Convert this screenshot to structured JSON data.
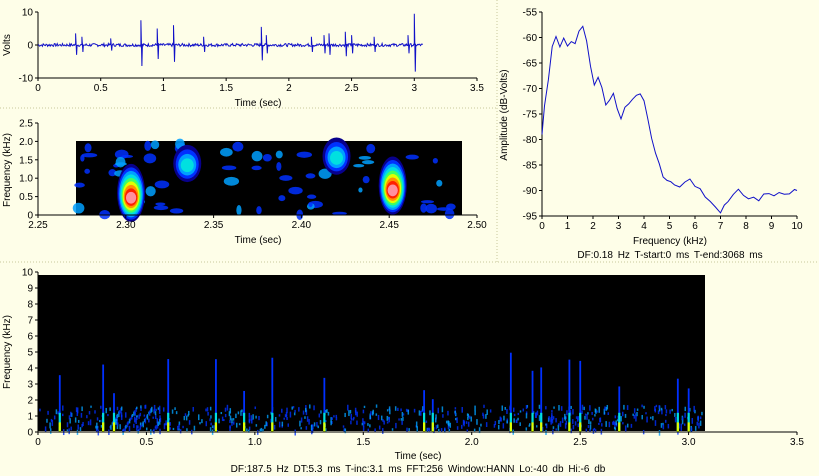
{
  "chart_data": [
    {
      "type": "line",
      "panel": "waveform",
      "xlabel": "Time (sec)",
      "ylabel": "Volts",
      "xlim": [
        0,
        3.5
      ],
      "ylim": [
        -10,
        10
      ],
      "xticks": [
        "0",
        "0.5",
        "1",
        "1.5",
        "2",
        "2.5",
        "3",
        "3.5"
      ],
      "yticks": [
        "10",
        "0",
        "-10"
      ],
      "duration": 3.068,
      "spikes": [
        {
          "t": 0.3,
          "amp": 3.5
        },
        {
          "t": 0.35,
          "amp": 2.5
        },
        {
          "t": 0.58,
          "amp": 2.0
        },
        {
          "t": 0.82,
          "amp": 7.5
        },
        {
          "t": 0.95,
          "amp": 5.0
        },
        {
          "t": 1.08,
          "amp": 6.0
        },
        {
          "t": 1.32,
          "amp": 2.5
        },
        {
          "t": 1.78,
          "amp": 5.5
        },
        {
          "t": 1.82,
          "amp": 3.0
        },
        {
          "t": 2.18,
          "amp": 2.5
        },
        {
          "t": 2.28,
          "amp": 3.0
        },
        {
          "t": 2.32,
          "amp": 3.5
        },
        {
          "t": 2.45,
          "amp": 4.0
        },
        {
          "t": 2.5,
          "amp": 3.0
        },
        {
          "t": 2.68,
          "amp": 2.5
        },
        {
          "t": 2.95,
          "amp": 3.0
        },
        {
          "t": 3.0,
          "amp": 9.5
        }
      ]
    },
    {
      "type": "heatmap",
      "panel": "spectrogram-zoom",
      "xlabel": "Time (sec)",
      "ylabel": "Frequency (kHz)",
      "xlim": [
        2.25,
        2.5
      ],
      "ylim": [
        0,
        2.5
      ],
      "xticks": [
        "2.25",
        "2.30",
        "2.35",
        "2.40",
        "2.45",
        "2.50"
      ],
      "yticks": [
        "0",
        "0.5",
        "1.0",
        "1.5",
        "2.0",
        "2.5"
      ],
      "data_extent": {
        "t": [
          2.27,
          2.49
        ],
        "f": [
          0,
          2.0
        ]
      },
      "hotspots": [
        {
          "t": 2.303,
          "f": 0.6,
          "intensity": 1.0
        },
        {
          "t": 2.452,
          "f": 0.8,
          "intensity": 1.0
        },
        {
          "t": 2.335,
          "f": 1.4,
          "intensity": 0.4
        },
        {
          "t": 2.42,
          "f": 1.6,
          "intensity": 0.4
        }
      ]
    },
    {
      "type": "line",
      "panel": "power-spectrum",
      "xlabel": "Frequency (kHz)",
      "ylabel": "Amplitude (dB-Volts)",
      "xlim": [
        0,
        10
      ],
      "ylim": [
        -95,
        -55
      ],
      "xticks": [
        "0",
        "1",
        "2",
        "3",
        "4",
        "5",
        "6",
        "7",
        "8",
        "9",
        "10"
      ],
      "yticks": [
        "-55",
        "-60",
        "-65",
        "-70",
        "-75",
        "-80",
        "-85",
        "-90",
        "-95"
      ],
      "x": [
        0,
        0.1,
        0.25,
        0.4,
        0.55,
        0.7,
        0.85,
        1.0,
        1.15,
        1.3,
        1.45,
        1.6,
        1.75,
        1.9,
        2.05,
        2.2,
        2.35,
        2.5,
        2.65,
        2.8,
        2.95,
        3.1,
        3.25,
        3.4,
        3.55,
        3.7,
        3.85,
        4.0,
        4.15,
        4.3,
        4.45,
        4.6,
        4.75,
        4.9,
        5.05,
        5.2,
        5.4,
        5.6,
        5.8,
        6.0,
        6.2,
        6.4,
        6.6,
        6.8,
        7.0,
        7.15,
        7.3,
        7.5,
        7.7,
        7.9,
        8.1,
        8.3,
        8.5,
        8.7,
        8.9,
        9.1,
        9.3,
        9.5,
        9.7,
        9.9,
        10.0
      ],
      "y": [
        -79,
        -73,
        -68,
        -62,
        -60,
        -62,
        -60,
        -62,
        -61,
        -61,
        -59,
        -58,
        -61,
        -66,
        -69,
        -68,
        -70,
        -73,
        -72,
        -71,
        -74,
        -76,
        -74,
        -73,
        -72,
        -71,
        -71,
        -72,
        -76,
        -80,
        -83,
        -85,
        -87,
        -88,
        -88,
        -89,
        -89,
        -88,
        -88,
        -89,
        -90,
        -91,
        -92,
        -93,
        -94,
        -93,
        -92,
        -91,
        -90,
        -91,
        -92,
        -91,
        -92,
        -91,
        -91,
        -91,
        -90,
        -91,
        -91,
        -90,
        -90
      ],
      "footer": "DF:0.18 Hz    T-start:0 ms    T-end:3068 ms"
    },
    {
      "type": "heatmap",
      "panel": "spectrogram-full",
      "xlabel": "Time (sec)",
      "ylabel": "Frequency (kHz)",
      "xlim": [
        0,
        3.5
      ],
      "ylim": [
        0,
        10
      ],
      "xticks": [
        "0",
        "0.5",
        "1.0",
        "1.5",
        "2.0",
        "2.5",
        "3.0",
        "3.5"
      ],
      "yticks": [
        "0",
        "1",
        "2",
        "3",
        "4",
        "5",
        "6",
        "7",
        "8",
        "9",
        "10"
      ],
      "data_extent": {
        "t": [
          0,
          3.068
        ],
        "f": [
          0,
          10
        ]
      },
      "events": [
        0.1,
        0.3,
        0.35,
        0.6,
        0.82,
        0.95,
        1.08,
        1.32,
        1.78,
        1.82,
        2.18,
        2.28,
        2.32,
        2.45,
        2.5,
        2.68,
        2.95,
        3.0
      ],
      "footer": "DF:187.5 Hz    DT:5.3 ms    T-inc:3.1 ms    FFT:256    Window:HANN    Lo:-40 db    Hi:-6 db"
    }
  ]
}
